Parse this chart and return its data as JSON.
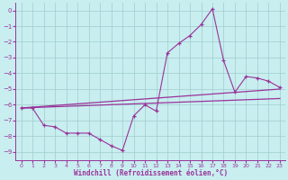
{
  "xlabel": "Windchill (Refroidissement éolien,°C)",
  "background_color": "#c8eef0",
  "grid_color": "#a0cccc",
  "line_color": "#993399",
  "x_values": [
    0,
    1,
    2,
    3,
    4,
    5,
    6,
    7,
    8,
    9,
    10,
    11,
    12,
    13,
    14,
    15,
    16,
    17,
    18,
    19,
    20,
    21,
    22,
    23
  ],
  "line_zigzag": [
    -6.2,
    -6.2,
    -7.3,
    -7.4,
    -7.8,
    -7.8,
    -7.8,
    -8.2,
    -8.6,
    -8.9,
    -6.7,
    -6.0,
    -6.4,
    -2.7,
    -2.1,
    -1.6,
    -0.9,
    0.1,
    -3.2,
    -5.2,
    -4.2,
    -4.3,
    -4.5,
    -4.9
  ],
  "line_peak": [
    null,
    null,
    null,
    null,
    null,
    null,
    null,
    null,
    null,
    null,
    null,
    null,
    null,
    null,
    null,
    null,
    null,
    0.1,
    -3.2,
    null,
    null,
    null,
    null,
    null
  ],
  "line_trend1_x": [
    0,
    23
  ],
  "line_trend1_y": [
    -6.2,
    -5.0
  ],
  "line_trend2_x": [
    0,
    23
  ],
  "line_trend2_y": [
    -6.2,
    -5.6
  ],
  "ylim": [
    -9.5,
    0.5
  ],
  "xlim": [
    -0.5,
    23.5
  ],
  "yticks": [
    0,
    -1,
    -2,
    -3,
    -4,
    -5,
    -6,
    -7,
    -8,
    -9
  ],
  "xticks": [
    0,
    1,
    2,
    3,
    4,
    5,
    6,
    7,
    8,
    9,
    10,
    11,
    12,
    13,
    14,
    15,
    16,
    17,
    18,
    19,
    20,
    21,
    22,
    23
  ]
}
